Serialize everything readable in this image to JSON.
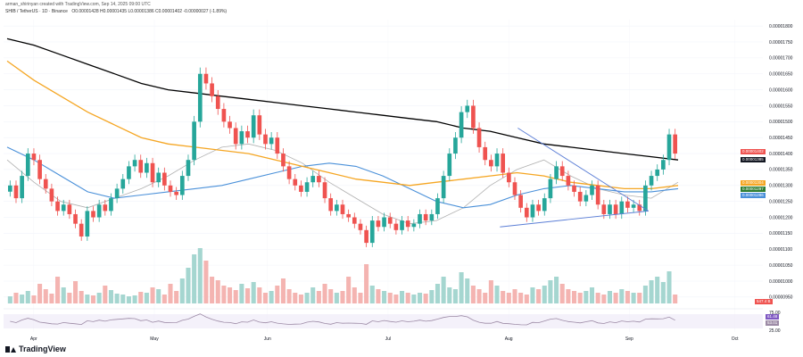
{
  "header": {
    "author_line": "arman_shirinyan created with TradingView.com, Sep 14, 2025 09:00 UTC",
    "symbol": "SHIB / TetherUS · 1D · Binance",
    "ohlc": "O0.00001428  H0.00001435  L0.00001386  C0.00001402  -0.00000027 (-1.89%)"
  },
  "branding": {
    "logo_text": "TradingView"
  },
  "colors": {
    "up": "#26a69a",
    "down": "#ef5350",
    "ma_black": "#000000",
    "ma_orange": "#f5a623",
    "ma_blue": "#4a90d9",
    "ma_grey": "#b0b0b0",
    "triangle": "#5b7ed6",
    "rsi": "#9c8aa5"
  },
  "price_tags": [
    {
      "label": "0.00001402",
      "bg": "#ef5350"
    },
    {
      "label": "0.00001385",
      "bg": "#131722"
    },
    {
      "label": "0.00001304",
      "bg": "#f5a623"
    },
    {
      "label": "0.00001297",
      "bg": "#2e7d32"
    },
    {
      "label": "0.00001286",
      "bg": "#4a90d9"
    }
  ],
  "volume_tag": {
    "label": "547.4 B",
    "bg": "#ef5350"
  },
  "rsi_tags": [
    {
      "label": "61.48",
      "bg": "#7e57c2"
    },
    {
      "label": "53.01",
      "bg": "#9c8aa5"
    }
  ],
  "chart_data": {
    "type": "candlestick",
    "price_axis": {
      "ticks": [
        "0.00001800",
        "0.00001750",
        "0.00001700",
        "0.00001650",
        "0.00001600",
        "0.00001550",
        "0.00001500",
        "0.00001450",
        "0.00001400",
        "0.00001350",
        "0.00001300",
        "0.00001250",
        "0.00001200",
        "0.00001150",
        "0.00001100",
        "0.00001050",
        "0.00001000",
        "0.00000950"
      ],
      "ylim": [
        9.3e-06,
        1.82e-05
      ]
    },
    "rsi_axis": {
      "ticks": [
        "75.00",
        "25.00"
      ],
      "ylim": [
        20,
        80
      ]
    },
    "x_labels": [
      "Apr",
      "May",
      "Jun",
      "Jul",
      "Aug",
      "Sep",
      "Oct"
    ],
    "candles_close": [
      1.3e-05,
      1.26e-05,
      1.33e-05,
      1.4e-05,
      1.38e-05,
      1.32e-05,
      1.29e-05,
      1.25e-05,
      1.22e-05,
      1.24e-05,
      1.21e-05,
      1.18e-05,
      1.14e-05,
      1.22e-05,
      1.2e-05,
      1.24e-05,
      1.22e-05,
      1.26e-05,
      1.29e-05,
      1.32e-05,
      1.36e-05,
      1.38e-05,
      1.34e-05,
      1.37e-05,
      1.31e-05,
      1.34e-05,
      1.3e-05,
      1.28e-05,
      1.27e-05,
      1.33e-05,
      1.38e-05,
      1.5e-05,
      1.65e-05,
      1.62e-05,
      1.58e-05,
      1.54e-05,
      1.5e-05,
      1.48e-05,
      1.43e-05,
      1.47e-05,
      1.45e-05,
      1.52e-05,
      1.46e-05,
      1.43e-05,
      1.45e-05,
      1.4e-05,
      1.36e-05,
      1.32e-05,
      1.3e-05,
      1.28e-05,
      1.31e-05,
      1.33e-05,
      1.31e-05,
      1.26e-05,
      1.22e-05,
      1.24e-05,
      1.21e-05,
      1.2e-05,
      1.18e-05,
      1.16e-05,
      1.12e-05,
      1.19e-05,
      1.17e-05,
      1.2e-05,
      1.18e-05,
      1.16e-05,
      1.19e-05,
      1.17e-05,
      1.18e-05,
      1.21e-05,
      1.19e-05,
      1.21e-05,
      1.26e-05,
      1.33e-05,
      1.4e-05,
      1.45e-05,
      1.53e-05,
      1.55e-05,
      1.48e-05,
      1.42e-05,
      1.38e-05,
      1.36e-05,
      1.4e-05,
      1.34e-05,
      1.31e-05,
      1.27e-05,
      1.23e-05,
      1.2e-05,
      1.24e-05,
      1.22e-05,
      1.26e-05,
      1.32e-05,
      1.36e-05,
      1.33e-05,
      1.3e-05,
      1.28e-05,
      1.25e-05,
      1.27e-05,
      1.3e-05,
      1.24e-05,
      1.21e-05,
      1.24e-05,
      1.21e-05,
      1.25e-05,
      1.23e-05,
      1.24e-05,
      1.22e-05,
      1.3e-05,
      1.33e-05,
      1.35e-05,
      1.38e-05,
      1.46e-05,
      1.4e-05
    ],
    "triangle": {
      "upper_start": 1.48e-05,
      "lower_start": 1.17e-05,
      "apex": 1.22e-05
    },
    "ma_black": [
      1.76e-05,
      1.74e-05,
      1.71e-05,
      1.68e-05,
      1.65e-05,
      1.62e-05,
      1.6e-05,
      1.59e-05,
      1.58e-05,
      1.57e-05,
      1.56e-05,
      1.55e-05,
      1.54e-05,
      1.53e-05,
      1.52e-05,
      1.51e-05,
      1.5e-05,
      1.48e-05,
      1.47e-05,
      1.45e-05,
      1.43e-05,
      1.42e-05,
      1.41e-05,
      1.4e-05,
      1.39e-05,
      1.38e-05
    ],
    "ma_orange": [
      1.69e-05,
      1.63e-05,
      1.58e-05,
      1.53e-05,
      1.49e-05,
      1.45e-05,
      1.43e-05,
      1.42e-05,
      1.41e-05,
      1.4e-05,
      1.38e-05,
      1.36e-05,
      1.34e-05,
      1.32e-05,
      1.31e-05,
      1.3e-05,
      1.31e-05,
      1.32e-05,
      1.33e-05,
      1.34e-05,
      1.33e-05,
      1.31e-05,
      1.3e-05,
      1.29e-05,
      1.29e-05,
      1.3e-05
    ],
    "ma_blue": [
      1.42e-05,
      1.38e-05,
      1.33e-05,
      1.28e-05,
      1.26e-05,
      1.27e-05,
      1.28e-05,
      1.29e-05,
      1.3e-05,
      1.32e-05,
      1.34e-05,
      1.36e-05,
      1.37e-05,
      1.36e-05,
      1.33e-05,
      1.29e-05,
      1.25e-05,
      1.23e-05,
      1.24e-05,
      1.27e-05,
      1.29e-05,
      1.3e-05,
      1.29e-05,
      1.28e-05,
      1.28e-05,
      1.29e-05
    ],
    "ma_grey": [
      1.38e-05,
      1.31e-05,
      1.25e-05,
      1.23e-05,
      1.26e-05,
      1.29e-05,
      1.33e-05,
      1.38e-05,
      1.42e-05,
      1.43e-05,
      1.41e-05,
      1.37e-05,
      1.31e-05,
      1.26e-05,
      1.21e-05,
      1.18e-05,
      1.19e-05,
      1.23e-05,
      1.3e-05,
      1.35e-05,
      1.38e-05,
      1.33e-05,
      1.29e-05,
      1.27e-05,
      1.26e-05,
      1.31e-05
    ]
  }
}
